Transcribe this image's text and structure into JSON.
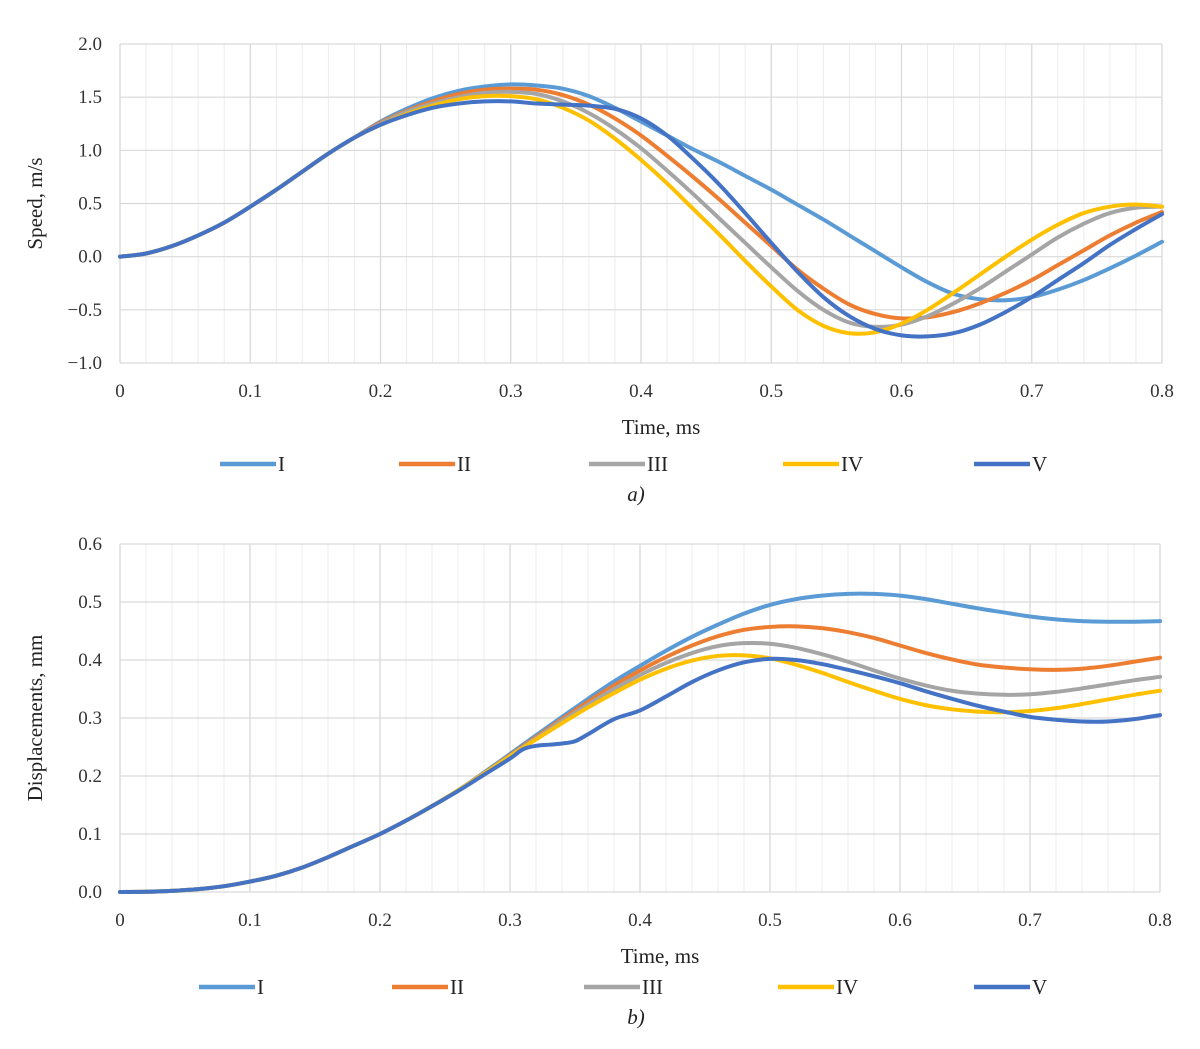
{
  "chart_data": [
    {
      "type": "line",
      "caption": "a)",
      "xlabel": "Time, ms",
      "ylabel": "Speed, m/s",
      "xlim": [
        0,
        0.8
      ],
      "ylim": [
        -1.0,
        2.0
      ],
      "grid": true,
      "legend": "bottom",
      "x_ticks": [
        "0",
        "0.1",
        "0.2",
        "0.3",
        "0.4",
        "0.5",
        "0.6",
        "0.7",
        "0.8"
      ],
      "y_ticks": [
        "2.0",
        "1.5",
        "1.0",
        "0.5",
        "0.0",
        "−0.5",
        "−1.0"
      ],
      "series": [
        {
          "name": "I",
          "color": "#5B9BD5",
          "x": [
            0,
            0.02,
            0.04,
            0.06,
            0.08,
            0.1,
            0.12,
            0.14,
            0.16,
            0.18,
            0.2,
            0.22,
            0.24,
            0.26,
            0.28,
            0.3,
            0.32,
            0.34,
            0.36,
            0.38,
            0.4,
            0.42,
            0.44,
            0.46,
            0.48,
            0.5,
            0.52,
            0.54,
            0.56,
            0.58,
            0.6,
            0.62,
            0.64,
            0.66,
            0.68,
            0.7,
            0.72,
            0.74,
            0.76,
            0.78,
            0.8
          ],
          "y": [
            0,
            0.03,
            0.1,
            0.2,
            0.32,
            0.47,
            0.63,
            0.8,
            0.97,
            1.12,
            1.27,
            1.39,
            1.49,
            1.56,
            1.6,
            1.62,
            1.61,
            1.58,
            1.51,
            1.4,
            1.27,
            1.14,
            1.01,
            0.89,
            0.76,
            0.63,
            0.49,
            0.35,
            0.2,
            0.05,
            -0.1,
            -0.24,
            -0.35,
            -0.4,
            -0.41,
            -0.38,
            -0.31,
            -0.22,
            -0.11,
            0.01,
            0.14
          ]
        },
        {
          "name": "II",
          "color": "#ED7D31",
          "x": [
            0,
            0.02,
            0.04,
            0.06,
            0.08,
            0.1,
            0.12,
            0.14,
            0.16,
            0.18,
            0.2,
            0.22,
            0.24,
            0.26,
            0.28,
            0.3,
            0.32,
            0.34,
            0.36,
            0.38,
            0.4,
            0.42,
            0.44,
            0.46,
            0.48,
            0.5,
            0.52,
            0.54,
            0.56,
            0.58,
            0.6,
            0.62,
            0.64,
            0.66,
            0.68,
            0.7,
            0.72,
            0.74,
            0.76,
            0.78,
            0.8
          ],
          "y": [
            0,
            0.03,
            0.1,
            0.2,
            0.32,
            0.47,
            0.63,
            0.8,
            0.97,
            1.12,
            1.26,
            1.37,
            1.46,
            1.53,
            1.57,
            1.58,
            1.57,
            1.52,
            1.43,
            1.3,
            1.14,
            0.95,
            0.75,
            0.54,
            0.32,
            0.1,
            -0.12,
            -0.3,
            -0.45,
            -0.54,
            -0.58,
            -0.57,
            -0.52,
            -0.44,
            -0.34,
            -0.22,
            -0.08,
            0.06,
            0.2,
            0.32,
            0.42
          ]
        },
        {
          "name": "III",
          "color": "#A5A5A5",
          "x": [
            0,
            0.02,
            0.04,
            0.06,
            0.08,
            0.1,
            0.12,
            0.14,
            0.16,
            0.18,
            0.2,
            0.22,
            0.24,
            0.26,
            0.28,
            0.3,
            0.32,
            0.34,
            0.36,
            0.38,
            0.4,
            0.42,
            0.44,
            0.46,
            0.48,
            0.5,
            0.52,
            0.54,
            0.56,
            0.58,
            0.6,
            0.62,
            0.64,
            0.66,
            0.68,
            0.7,
            0.72,
            0.74,
            0.76,
            0.78,
            0.8
          ],
          "y": [
            0,
            0.03,
            0.1,
            0.2,
            0.32,
            0.47,
            0.63,
            0.8,
            0.97,
            1.12,
            1.25,
            1.36,
            1.44,
            1.5,
            1.54,
            1.55,
            1.53,
            1.46,
            1.35,
            1.2,
            1.02,
            0.81,
            0.59,
            0.36,
            0.13,
            -0.1,
            -0.32,
            -0.5,
            -0.62,
            -0.66,
            -0.64,
            -0.56,
            -0.44,
            -0.3,
            -0.14,
            0.02,
            0.18,
            0.31,
            0.41,
            0.46,
            0.47
          ]
        },
        {
          "name": "IV",
          "color": "#FFC000",
          "x": [
            0,
            0.02,
            0.04,
            0.06,
            0.08,
            0.1,
            0.12,
            0.14,
            0.16,
            0.18,
            0.2,
            0.22,
            0.24,
            0.26,
            0.28,
            0.3,
            0.32,
            0.34,
            0.36,
            0.38,
            0.4,
            0.42,
            0.44,
            0.46,
            0.48,
            0.5,
            0.52,
            0.54,
            0.56,
            0.58,
            0.6,
            0.62,
            0.64,
            0.66,
            0.68,
            0.7,
            0.72,
            0.74,
            0.76,
            0.78,
            0.8
          ],
          "y": [
            0,
            0.03,
            0.1,
            0.2,
            0.32,
            0.47,
            0.63,
            0.8,
            0.97,
            1.12,
            1.24,
            1.34,
            1.42,
            1.48,
            1.51,
            1.51,
            1.48,
            1.4,
            1.28,
            1.11,
            0.91,
            0.69,
            0.45,
            0.21,
            -0.04,
            -0.28,
            -0.5,
            -0.65,
            -0.72,
            -0.71,
            -0.63,
            -0.5,
            -0.34,
            -0.17,
            0.0,
            0.16,
            0.3,
            0.41,
            0.47,
            0.49,
            0.47
          ]
        },
        {
          "name": "V",
          "color": "#4472C4",
          "x": [
            0,
            0.02,
            0.04,
            0.06,
            0.08,
            0.1,
            0.12,
            0.14,
            0.16,
            0.18,
            0.2,
            0.22,
            0.24,
            0.26,
            0.28,
            0.3,
            0.32,
            0.34,
            0.36,
            0.38,
            0.4,
            0.42,
            0.44,
            0.46,
            0.48,
            0.5,
            0.52,
            0.54,
            0.56,
            0.58,
            0.6,
            0.62,
            0.64,
            0.66,
            0.68,
            0.7,
            0.72,
            0.74,
            0.76,
            0.78,
            0.8
          ],
          "y": [
            0,
            0.03,
            0.1,
            0.2,
            0.32,
            0.47,
            0.63,
            0.8,
            0.97,
            1.12,
            1.24,
            1.33,
            1.4,
            1.44,
            1.46,
            1.46,
            1.44,
            1.43,
            1.42,
            1.39,
            1.3,
            1.14,
            0.92,
            0.68,
            0.41,
            0.13,
            -0.14,
            -0.38,
            -0.56,
            -0.68,
            -0.74,
            -0.75,
            -0.72,
            -0.64,
            -0.52,
            -0.38,
            -0.22,
            -0.06,
            0.11,
            0.26,
            0.4
          ]
        }
      ],
      "legend_entries": [
        "I",
        "II",
        "III",
        "IV",
        "V"
      ]
    },
    {
      "type": "line",
      "caption": "b)",
      "xlabel": "Time, ms",
      "ylabel": "Displacements, mm",
      "xlim": [
        0,
        0.8
      ],
      "ylim": [
        0.0,
        0.6
      ],
      "grid": true,
      "legend": "bottom",
      "x_ticks": [
        "0",
        "0.1",
        "0.2",
        "0.3",
        "0.4",
        "0.5",
        "0.6",
        "0.7",
        "0.8"
      ],
      "y_ticks": [
        "0.6",
        "0.5",
        "0.4",
        "0.3",
        "0.2",
        "0.1",
        "0.0"
      ],
      "series": [
        {
          "name": "I",
          "color": "#5B9BD5",
          "x": [
            0,
            0.02,
            0.04,
            0.06,
            0.08,
            0.1,
            0.12,
            0.14,
            0.16,
            0.18,
            0.2,
            0.22,
            0.24,
            0.26,
            0.28,
            0.3,
            0.32,
            0.34,
            0.36,
            0.38,
            0.4,
            0.42,
            0.44,
            0.46,
            0.48,
            0.5,
            0.52,
            0.54,
            0.56,
            0.58,
            0.6,
            0.62,
            0.64,
            0.66,
            0.68,
            0.7,
            0.72,
            0.74,
            0.76,
            0.78,
            0.8
          ],
          "y": [
            0,
            0.0005,
            0.002,
            0.005,
            0.01,
            0.018,
            0.028,
            0.042,
            0.06,
            0.08,
            0.1,
            0.123,
            0.148,
            0.175,
            0.206,
            0.238,
            0.27,
            0.302,
            0.333,
            0.363,
            0.39,
            0.416,
            0.44,
            0.461,
            0.48,
            0.495,
            0.505,
            0.511,
            0.514,
            0.514,
            0.511,
            0.505,
            0.497,
            0.489,
            0.482,
            0.475,
            0.47,
            0.467,
            0.466,
            0.466,
            0.467
          ]
        },
        {
          "name": "II",
          "color": "#ED7D31",
          "x": [
            0,
            0.02,
            0.04,
            0.06,
            0.08,
            0.1,
            0.12,
            0.14,
            0.16,
            0.18,
            0.2,
            0.22,
            0.24,
            0.26,
            0.28,
            0.3,
            0.32,
            0.34,
            0.36,
            0.38,
            0.4,
            0.42,
            0.44,
            0.46,
            0.48,
            0.5,
            0.52,
            0.54,
            0.56,
            0.58,
            0.6,
            0.62,
            0.64,
            0.66,
            0.68,
            0.7,
            0.72,
            0.74,
            0.76,
            0.78,
            0.8
          ],
          "y": [
            0,
            0.0005,
            0.002,
            0.005,
            0.01,
            0.018,
            0.028,
            0.042,
            0.06,
            0.08,
            0.1,
            0.123,
            0.148,
            0.175,
            0.205,
            0.236,
            0.267,
            0.298,
            0.328,
            0.356,
            0.382,
            0.405,
            0.425,
            0.441,
            0.452,
            0.457,
            0.458,
            0.455,
            0.448,
            0.438,
            0.425,
            0.412,
            0.401,
            0.392,
            0.387,
            0.384,
            0.383,
            0.385,
            0.39,
            0.397,
            0.404
          ]
        },
        {
          "name": "III",
          "color": "#A5A5A5",
          "x": [
            0,
            0.02,
            0.04,
            0.06,
            0.08,
            0.1,
            0.12,
            0.14,
            0.16,
            0.18,
            0.2,
            0.22,
            0.24,
            0.26,
            0.28,
            0.3,
            0.32,
            0.34,
            0.36,
            0.38,
            0.4,
            0.42,
            0.44,
            0.46,
            0.48,
            0.5,
            0.52,
            0.54,
            0.56,
            0.58,
            0.6,
            0.62,
            0.64,
            0.66,
            0.68,
            0.7,
            0.72,
            0.74,
            0.76,
            0.78,
            0.8
          ],
          "y": [
            0,
            0.0005,
            0.002,
            0.005,
            0.01,
            0.018,
            0.028,
            0.042,
            0.06,
            0.08,
            0.1,
            0.123,
            0.148,
            0.175,
            0.205,
            0.235,
            0.265,
            0.295,
            0.323,
            0.35,
            0.374,
            0.395,
            0.412,
            0.424,
            0.429,
            0.428,
            0.421,
            0.41,
            0.397,
            0.382,
            0.368,
            0.356,
            0.347,
            0.342,
            0.34,
            0.341,
            0.345,
            0.351,
            0.358,
            0.365,
            0.371
          ]
        },
        {
          "name": "IV",
          "color": "#FFC000",
          "x": [
            0,
            0.02,
            0.04,
            0.06,
            0.08,
            0.1,
            0.12,
            0.14,
            0.16,
            0.18,
            0.2,
            0.22,
            0.24,
            0.26,
            0.28,
            0.3,
            0.32,
            0.34,
            0.36,
            0.38,
            0.4,
            0.42,
            0.44,
            0.46,
            0.48,
            0.5,
            0.52,
            0.54,
            0.56,
            0.58,
            0.6,
            0.62,
            0.64,
            0.66,
            0.68,
            0.7,
            0.72,
            0.74,
            0.76,
            0.78,
            0.8
          ],
          "y": [
            0,
            0.0005,
            0.002,
            0.005,
            0.01,
            0.018,
            0.028,
            0.042,
            0.06,
            0.08,
            0.1,
            0.123,
            0.148,
            0.175,
            0.204,
            0.234,
            0.263,
            0.291,
            0.318,
            0.343,
            0.366,
            0.385,
            0.399,
            0.407,
            0.408,
            0.403,
            0.392,
            0.378,
            0.362,
            0.347,
            0.333,
            0.322,
            0.315,
            0.311,
            0.31,
            0.312,
            0.317,
            0.324,
            0.332,
            0.34,
            0.347
          ]
        },
        {
          "name": "V",
          "color": "#4472C4",
          "x": [
            0,
            0.02,
            0.04,
            0.06,
            0.08,
            0.1,
            0.12,
            0.14,
            0.16,
            0.18,
            0.2,
            0.22,
            0.24,
            0.26,
            0.28,
            0.3,
            0.31,
            0.32,
            0.33,
            0.34,
            0.35,
            0.36,
            0.38,
            0.4,
            0.42,
            0.44,
            0.46,
            0.48,
            0.5,
            0.52,
            0.54,
            0.56,
            0.58,
            0.6,
            0.62,
            0.64,
            0.66,
            0.68,
            0.7,
            0.72,
            0.74,
            0.76,
            0.78,
            0.8
          ],
          "y": [
            0,
            0.0005,
            0.002,
            0.005,
            0.01,
            0.018,
            0.028,
            0.042,
            0.06,
            0.08,
            0.1,
            0.123,
            0.148,
            0.174,
            0.202,
            0.23,
            0.246,
            0.252,
            0.254,
            0.256,
            0.26,
            0.272,
            0.298,
            0.313,
            0.337,
            0.362,
            0.382,
            0.396,
            0.402,
            0.4,
            0.393,
            0.383,
            0.372,
            0.36,
            0.346,
            0.333,
            0.321,
            0.311,
            0.302,
            0.297,
            0.294,
            0.294,
            0.298,
            0.305
          ]
        }
      ],
      "legend_entries": [
        "I",
        "II",
        "III",
        "IV",
        "V"
      ]
    }
  ]
}
